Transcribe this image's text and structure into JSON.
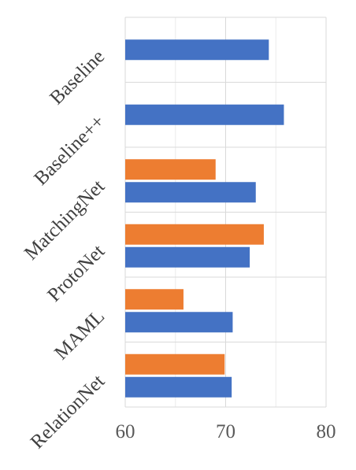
{
  "chart_data": {
    "type": "bar",
    "orientation": "horizontal",
    "categories": [
      "Baseline",
      "Baseline++",
      "MatchingNet",
      "ProtoNet",
      "MAML",
      "RelationNet"
    ],
    "series": [
      {
        "color": "#ED7D31",
        "values": [
          null,
          null,
          69.0,
          73.8,
          65.8,
          69.9
        ]
      },
      {
        "color": "#4472C4",
        "values": [
          74.3,
          75.8,
          73.0,
          72.4,
          70.7,
          70.6
        ]
      }
    ],
    "xlim": [
      60,
      80
    ],
    "xticks": [
      "60",
      "70",
      "80"
    ],
    "title": "",
    "xlabel": "",
    "ylabel": "",
    "grid": true,
    "legend": "none"
  }
}
